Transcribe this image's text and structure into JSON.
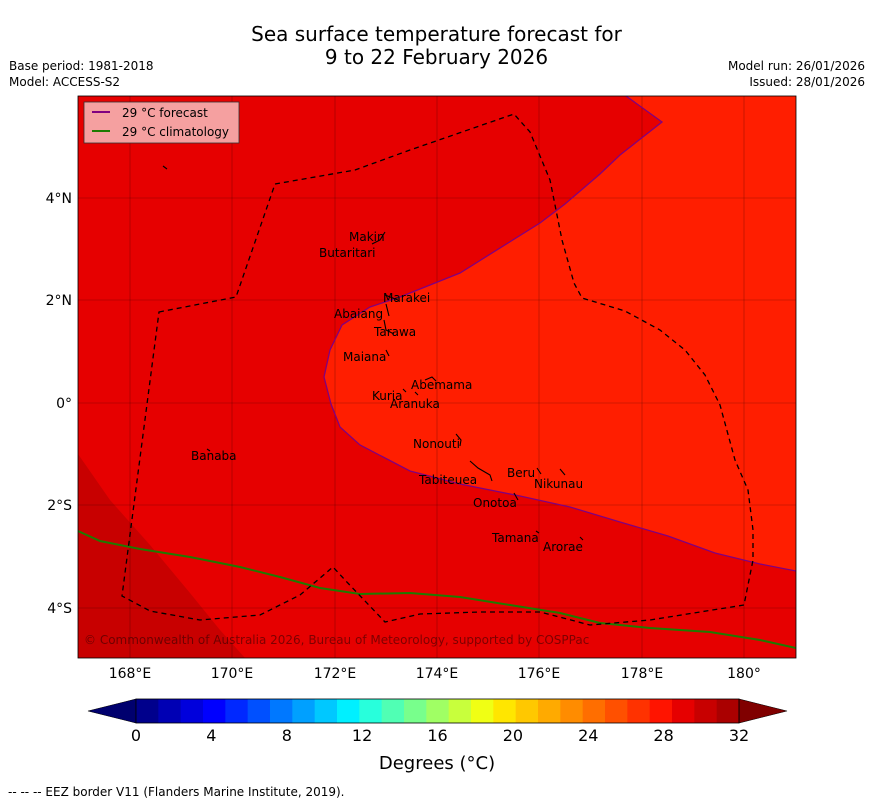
{
  "title_line1": "Sea surface temperature forecast for",
  "title_line2": "9 to 22 February 2026",
  "base_period": "Base period: 1981-2018",
  "model": "Model: ACCESS-S2",
  "model_run": "Model run: 26/01/2026",
  "issued": "Issued: 28/01/2026",
  "legend": {
    "forecast": "29 °C  forecast",
    "climatology": "29 °C  climatology",
    "forecast_color": "#800080",
    "climatology_color": "#1f7a00"
  },
  "x_ticks": [
    "168°E",
    "170°E",
    "172°E",
    "174°E",
    "176°E",
    "178°E",
    "180°"
  ],
  "y_ticks": [
    "4°N",
    "2°N",
    "0°",
    "2°S",
    "4°S"
  ],
  "places": [
    "Makin",
    "Butaritari",
    "Marakei",
    "Abaiang",
    "Tarawa",
    "Maiana",
    "Abemama",
    "Kuria",
    "Aranuka",
    "Banaba",
    "Nonouti",
    "Beru",
    "Nikunau",
    "Tabiteuea",
    "Onotoa",
    "Tamana",
    "Arorae"
  ],
  "copyright": "© Commonwealth of Australia 2026, Bureau of Meteorology, supported by COSPPac",
  "colorbar": {
    "ticks": [
      "0",
      "4",
      "8",
      "12",
      "16",
      "20",
      "24",
      "28",
      "32"
    ],
    "label": "Degrees (°C)",
    "colors": [
      "#00008c",
      "#0000b4",
      "#0000dc",
      "#0000ff",
      "#0028ff",
      "#0050ff",
      "#0078ff",
      "#00a0ff",
      "#00c8ff",
      "#00f0ff",
      "#28ffdc",
      "#50ffb4",
      "#78ff8c",
      "#a0ff64",
      "#c8ff3c",
      "#f0ff14",
      "#ffe600",
      "#ffc800",
      "#ffaa00",
      "#ff8c00",
      "#ff6e00",
      "#ff5000",
      "#ff3200",
      "#ff1400",
      "#e60000",
      "#c80000",
      "#aa0000"
    ],
    "under_color": "#00006e",
    "over_color": "#800000"
  },
  "region_colors": {
    "warm": "#e60000",
    "warmer": "#ff1e00",
    "cool": "#c80000"
  },
  "footer": "--  --  -- EEZ border V11 (Flanders Marine Institute, 2019)."
}
